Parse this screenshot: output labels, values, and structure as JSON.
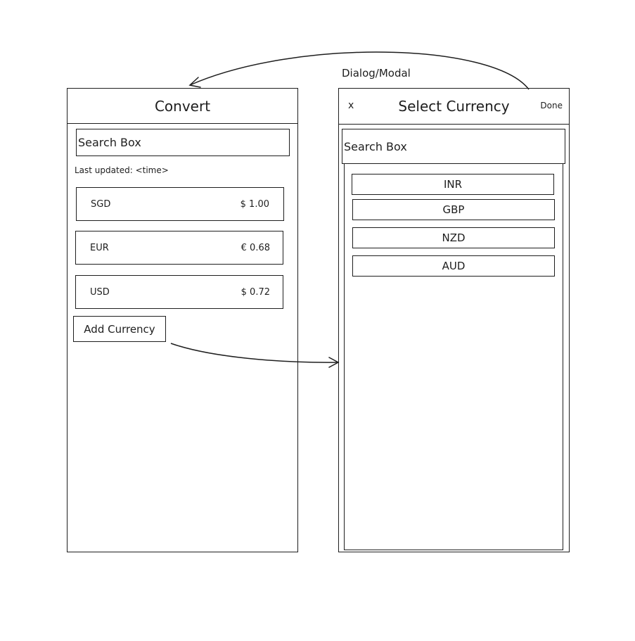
{
  "annotation": {
    "dialog_label": "Dialog/Modal"
  },
  "convert_screen": {
    "title": "Convert",
    "search_placeholder": "Search Box",
    "last_updated": "Last updated: <time>",
    "rows": [
      {
        "code": "SGD",
        "value": "$ 1.00"
      },
      {
        "code": "EUR",
        "value": "€ 0.68"
      },
      {
        "code": "USD",
        "value": "$ 0.72"
      }
    ],
    "add_button": "Add Currency"
  },
  "select_dialog": {
    "close": "x",
    "title": "Select Currency",
    "done": "Done",
    "search_placeholder": "Search Box",
    "options": [
      "INR",
      "GBP",
      "NZD",
      "AUD"
    ]
  }
}
